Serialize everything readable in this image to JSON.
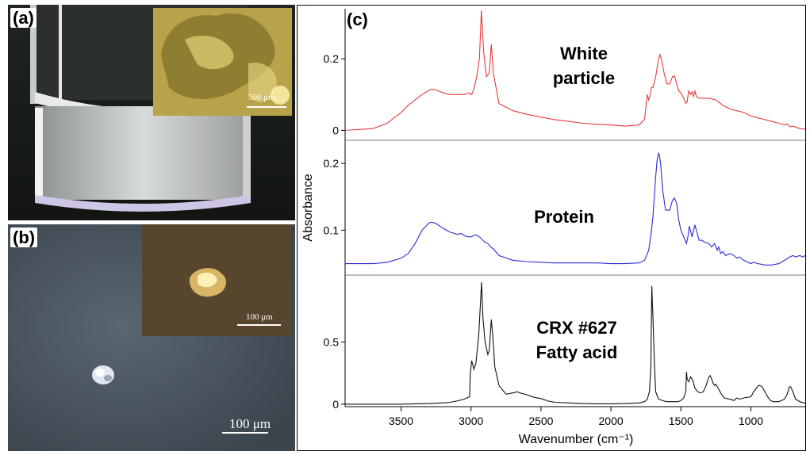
{
  "panels": {
    "a": {
      "label": "(a)",
      "inset_scale": "500 μm"
    },
    "b": {
      "label": "(b)",
      "inset_scale": "100 μm",
      "main_scale": "100 μm"
    },
    "c": {
      "label": "(c)"
    }
  },
  "chart_data": {
    "type": "line",
    "xlabel": "Wavenumber (cm⁻¹)",
    "ylabel": "Absorbance",
    "xlim": [
      3900,
      600
    ],
    "xticks": [
      3500,
      3000,
      2500,
      2000,
      1500,
      1000
    ],
    "grid": false,
    "series": [
      {
        "name": "White particle",
        "label_lines": [
          "White",
          "particle"
        ],
        "color": "#e83a3a",
        "yticks": [
          0,
          0.2
        ],
        "ylim": [
          -0.01,
          0.34
        ],
        "x": [
          3900,
          3700,
          3600,
          3500,
          3450,
          3400,
          3350,
          3300,
          3280,
          3250,
          3200,
          3150,
          3100,
          3050,
          3010,
          2995,
          2980,
          2960,
          2940,
          2926,
          2910,
          2890,
          2870,
          2855,
          2840,
          2800,
          2700,
          2600,
          2500,
          2400,
          2300,
          2200,
          2100,
          2000,
          1900,
          1800,
          1760,
          1740,
          1730,
          1720,
          1710,
          1700,
          1680,
          1660,
          1650,
          1640,
          1620,
          1600,
          1580,
          1560,
          1545,
          1530,
          1515,
          1500,
          1480,
          1465,
          1455,
          1445,
          1430,
          1420,
          1410,
          1400,
          1390,
          1370,
          1350,
          1300,
          1250,
          1200,
          1150,
          1100,
          1050,
          1000,
          950,
          900,
          850,
          800,
          760,
          740,
          720,
          700,
          650,
          600
        ],
        "y": [
          0.0,
          0.005,
          0.02,
          0.05,
          0.07,
          0.085,
          0.1,
          0.112,
          0.115,
          0.113,
          0.105,
          0.1,
          0.1,
          0.1,
          0.105,
          0.1,
          0.115,
          0.15,
          0.2,
          0.335,
          0.22,
          0.15,
          0.16,
          0.24,
          0.16,
          0.075,
          0.055,
          0.045,
          0.037,
          0.03,
          0.025,
          0.02,
          0.017,
          0.015,
          0.012,
          0.015,
          0.03,
          0.1,
          0.085,
          0.1,
          0.12,
          0.12,
          0.15,
          0.2,
          0.212,
          0.2,
          0.16,
          0.13,
          0.13,
          0.15,
          0.152,
          0.13,
          0.11,
          0.105,
          0.09,
          0.075,
          0.08,
          0.11,
          0.1,
          0.108,
          0.095,
          0.11,
          0.095,
          0.09,
          0.09,
          0.09,
          0.085,
          0.07,
          0.06,
          0.055,
          0.05,
          0.04,
          0.035,
          0.03,
          0.025,
          0.02,
          0.015,
          0.018,
          0.01,
          0.012,
          0.005,
          0.003
        ]
      },
      {
        "name": "Protein",
        "color": "#2b2bd9",
        "yticks": [
          0.1,
          0.2
        ],
        "ylim": [
          0.04,
          0.225
        ],
        "x": [
          3900,
          3800,
          3700,
          3600,
          3500,
          3450,
          3400,
          3350,
          3300,
          3280,
          3250,
          3200,
          3150,
          3100,
          3070,
          3050,
          3020,
          3000,
          2970,
          2950,
          2930,
          2900,
          2880,
          2860,
          2840,
          2800,
          2700,
          2600,
          2500,
          2400,
          2300,
          2200,
          2100,
          2000,
          1900,
          1800,
          1760,
          1730,
          1710,
          1700,
          1690,
          1680,
          1670,
          1660,
          1655,
          1645,
          1630,
          1610,
          1600,
          1580,
          1560,
          1545,
          1530,
          1515,
          1500,
          1480,
          1460,
          1450,
          1440,
          1420,
          1400,
          1390,
          1370,
          1350,
          1330,
          1300,
          1280,
          1260,
          1240,
          1230,
          1215,
          1200,
          1180,
          1150,
          1120,
          1100,
          1080,
          1050,
          1000,
          980,
          950,
          900,
          850,
          800,
          760,
          720,
          700,
          680,
          650,
          630,
          610,
          600
        ],
        "y": [
          0.05,
          0.05,
          0.05,
          0.052,
          0.058,
          0.065,
          0.08,
          0.1,
          0.111,
          0.112,
          0.11,
          0.103,
          0.097,
          0.094,
          0.095,
          0.092,
          0.09,
          0.09,
          0.093,
          0.092,
          0.088,
          0.082,
          0.08,
          0.075,
          0.072,
          0.062,
          0.055,
          0.053,
          0.052,
          0.051,
          0.051,
          0.051,
          0.051,
          0.05,
          0.05,
          0.051,
          0.055,
          0.07,
          0.1,
          0.12,
          0.15,
          0.18,
          0.205,
          0.215,
          0.213,
          0.2,
          0.16,
          0.13,
          0.13,
          0.13,
          0.145,
          0.148,
          0.14,
          0.115,
          0.1,
          0.09,
          0.08,
          0.09,
          0.106,
          0.09,
          0.108,
          0.1,
          0.085,
          0.085,
          0.082,
          0.08,
          0.075,
          0.08,
          0.07,
          0.075,
          0.065,
          0.068,
          0.062,
          0.065,
          0.062,
          0.058,
          0.06,
          0.055,
          0.05,
          0.052,
          0.05,
          0.048,
          0.048,
          0.05,
          0.055,
          0.06,
          0.062,
          0.06,
          0.062,
          0.06,
          0.062,
          0.058
        ]
      },
      {
        "name": "CRX #627 Fatty acid",
        "label_lines": [
          "CRX #627",
          "Fatty acid"
        ],
        "color": "#111111",
        "yticks": [
          0,
          0.5
        ],
        "ylim": [
          -0.02,
          1.0
        ],
        "x": [
          3900,
          3700,
          3500,
          3300,
          3200,
          3150,
          3100,
          3050,
          3010,
          3005,
          2995,
          2980,
          2965,
          2945,
          2925,
          2915,
          2900,
          2880,
          2870,
          2855,
          2845,
          2830,
          2800,
          2750,
          2700,
          2670,
          2650,
          2600,
          2550,
          2500,
          2450,
          2400,
          2300,
          2200,
          2100,
          2000,
          1900,
          1800,
          1760,
          1740,
          1725,
          1715,
          1708,
          1700,
          1690,
          1680,
          1660,
          1620,
          1600,
          1580,
          1560,
          1540,
          1520,
          1500,
          1480,
          1465,
          1460,
          1455,
          1445,
          1430,
          1420,
          1412,
          1400,
          1380,
          1360,
          1340,
          1320,
          1300,
          1290,
          1280,
          1270,
          1260,
          1250,
          1240,
          1230,
          1210,
          1190,
          1150,
          1120,
          1100,
          1080,
          1050,
          1000,
          980,
          960,
          945,
          935,
          920,
          900,
          880,
          860,
          840,
          800,
          760,
          740,
          725,
          715,
          700,
          680,
          650,
          620,
          600
        ],
        "y": [
          0.0,
          0.0,
          0.0,
          0.005,
          0.01,
          0.015,
          0.025,
          0.04,
          0.06,
          0.25,
          0.35,
          0.28,
          0.33,
          0.55,
          0.98,
          0.7,
          0.5,
          0.4,
          0.43,
          0.68,
          0.55,
          0.3,
          0.15,
          0.08,
          0.09,
          0.1,
          0.09,
          0.075,
          0.055,
          0.045,
          0.025,
          0.015,
          0.01,
          0.005,
          0.003,
          0.003,
          0.005,
          0.01,
          0.02,
          0.04,
          0.1,
          0.3,
          0.95,
          0.7,
          0.35,
          0.1,
          0.04,
          0.025,
          0.02,
          0.02,
          0.02,
          0.02,
          0.02,
          0.03,
          0.05,
          0.1,
          0.26,
          0.2,
          0.18,
          0.22,
          0.2,
          0.18,
          0.13,
          0.1,
          0.09,
          0.1,
          0.15,
          0.22,
          0.23,
          0.2,
          0.17,
          0.15,
          0.16,
          0.14,
          0.12,
          0.08,
          0.05,
          0.04,
          0.03,
          0.05,
          0.04,
          0.05,
          0.06,
          0.1,
          0.13,
          0.15,
          0.15,
          0.14,
          0.1,
          0.06,
          0.03,
          0.02,
          0.02,
          0.04,
          0.08,
          0.14,
          0.14,
          0.1,
          0.04,
          0.02,
          0.01,
          0.01
        ]
      }
    ]
  }
}
